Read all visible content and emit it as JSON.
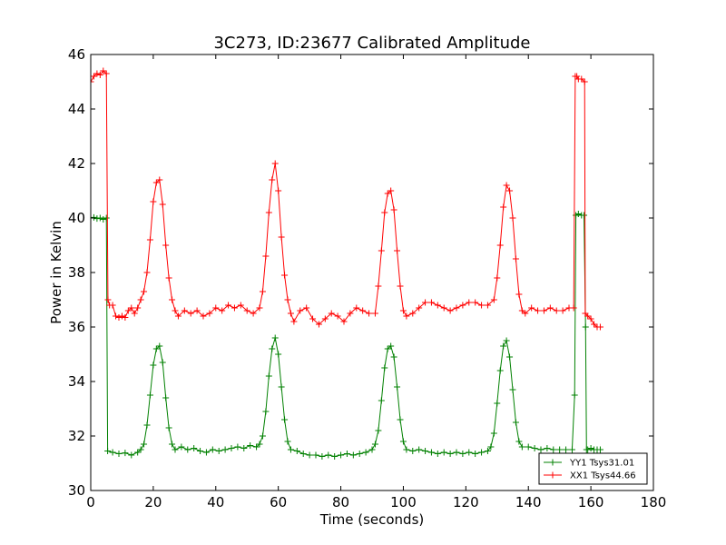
{
  "chart_data": {
    "type": "line",
    "title": "3C273, ID:23677 Calibrated Amplitude",
    "xlabel": "Time (seconds)",
    "ylabel": "Power in Kelvin",
    "xlim": [
      0,
      180
    ],
    "ylim": [
      30,
      46
    ],
    "xticks": [
      "0",
      "20",
      "40",
      "60",
      "80",
      "100",
      "120",
      "140",
      "160",
      "180"
    ],
    "yticks": [
      "30",
      "32",
      "34",
      "36",
      "38",
      "40",
      "42",
      "44",
      "46"
    ],
    "grid": false,
    "legend_position": "bottom-right",
    "marker": "plus",
    "series": [
      {
        "name": "YY1 Tsys31.01",
        "color": "#008000",
        "points": [
          [
            0,
            40.0
          ],
          [
            1,
            40.02
          ],
          [
            2,
            39.98
          ],
          [
            3,
            40.0
          ],
          [
            4,
            39.95
          ],
          [
            5,
            40.0
          ],
          [
            5.4,
            31.45
          ],
          [
            7,
            31.4
          ],
          [
            9,
            31.35
          ],
          [
            11,
            31.38
          ],
          [
            13,
            31.3
          ],
          [
            15,
            31.4
          ],
          [
            16,
            31.5
          ],
          [
            17,
            31.7
          ],
          [
            18,
            32.4
          ],
          [
            19,
            33.5
          ],
          [
            20,
            34.6
          ],
          [
            21,
            35.2
          ],
          [
            22,
            35.3
          ],
          [
            23,
            34.7
          ],
          [
            24,
            33.4
          ],
          [
            25,
            32.3
          ],
          [
            26,
            31.7
          ],
          [
            27,
            31.5
          ],
          [
            29,
            31.6
          ],
          [
            31,
            31.5
          ],
          [
            33,
            31.55
          ],
          [
            35,
            31.45
          ],
          [
            37,
            31.4
          ],
          [
            39,
            31.5
          ],
          [
            41,
            31.45
          ],
          [
            43,
            31.5
          ],
          [
            45,
            31.55
          ],
          [
            47,
            31.6
          ],
          [
            49,
            31.55
          ],
          [
            51,
            31.65
          ],
          [
            53,
            31.6
          ],
          [
            54,
            31.7
          ],
          [
            55,
            32.0
          ],
          [
            56,
            32.9
          ],
          [
            57,
            34.2
          ],
          [
            58,
            35.2
          ],
          [
            59,
            35.6
          ],
          [
            60,
            35.0
          ],
          [
            61,
            33.8
          ],
          [
            62,
            32.6
          ],
          [
            63,
            31.8
          ],
          [
            64,
            31.5
          ],
          [
            66,
            31.45
          ],
          [
            68,
            31.35
          ],
          [
            70,
            31.3
          ],
          [
            72,
            31.3
          ],
          [
            74,
            31.25
          ],
          [
            76,
            31.3
          ],
          [
            78,
            31.25
          ],
          [
            80,
            31.3
          ],
          [
            82,
            31.35
          ],
          [
            84,
            31.3
          ],
          [
            86,
            31.35
          ],
          [
            88,
            31.4
          ],
          [
            90,
            31.5
          ],
          [
            91,
            31.7
          ],
          [
            92,
            32.2
          ],
          [
            93,
            33.3
          ],
          [
            94,
            34.5
          ],
          [
            95,
            35.2
          ],
          [
            96,
            35.3
          ],
          [
            97,
            34.9
          ],
          [
            98,
            33.8
          ],
          [
            99,
            32.6
          ],
          [
            100,
            31.8
          ],
          [
            101,
            31.5
          ],
          [
            103,
            31.45
          ],
          [
            105,
            31.5
          ],
          [
            107,
            31.45
          ],
          [
            109,
            31.4
          ],
          [
            111,
            31.35
          ],
          [
            113,
            31.4
          ],
          [
            115,
            31.35
          ],
          [
            117,
            31.4
          ],
          [
            119,
            31.35
          ],
          [
            121,
            31.4
          ],
          [
            123,
            31.35
          ],
          [
            125,
            31.4
          ],
          [
            127,
            31.45
          ],
          [
            128,
            31.6
          ],
          [
            129,
            32.1
          ],
          [
            130,
            33.2
          ],
          [
            131,
            34.4
          ],
          [
            132,
            35.3
          ],
          [
            133,
            35.5
          ],
          [
            134,
            34.9
          ],
          [
            135,
            33.7
          ],
          [
            136,
            32.5
          ],
          [
            137,
            31.8
          ],
          [
            138,
            31.6
          ],
          [
            140,
            31.6
          ],
          [
            142,
            31.55
          ],
          [
            144,
            31.5
          ],
          [
            146,
            31.55
          ],
          [
            148,
            31.5
          ],
          [
            150,
            31.5
          ],
          [
            152,
            31.5
          ],
          [
            154,
            31.5
          ],
          [
            154.8,
            33.5
          ],
          [
            155.2,
            40.1
          ],
          [
            156,
            40.15
          ],
          [
            157,
            40.1
          ],
          [
            157.8,
            40.1
          ],
          [
            158.3,
            36.0
          ],
          [
            158.6,
            31.5
          ],
          [
            159,
            31.5
          ],
          [
            160,
            31.55
          ],
          [
            161,
            31.5
          ],
          [
            162,
            31.5
          ],
          [
            163,
            31.5
          ]
        ]
      },
      {
        "name": "XX1 Tsys44.66",
        "color": "#ff0000",
        "points": [
          [
            0,
            45.0
          ],
          [
            1,
            45.2
          ],
          [
            2,
            45.3
          ],
          [
            3,
            45.25
          ],
          [
            4,
            45.4
          ],
          [
            5,
            45.3
          ],
          [
            5.5,
            37.0
          ],
          [
            6,
            36.8
          ],
          [
            7,
            36.8
          ],
          [
            8,
            36.4
          ],
          [
            9,
            36.35
          ],
          [
            10,
            36.4
          ],
          [
            11,
            36.35
          ],
          [
            12,
            36.6
          ],
          [
            13,
            36.7
          ],
          [
            14,
            36.5
          ],
          [
            15,
            36.7
          ],
          [
            16,
            37.0
          ],
          [
            17,
            37.3
          ],
          [
            18,
            38.0
          ],
          [
            19,
            39.2
          ],
          [
            20,
            40.6
          ],
          [
            21,
            41.3
          ],
          [
            22,
            41.4
          ],
          [
            23,
            40.5
          ],
          [
            24,
            39.0
          ],
          [
            25,
            37.8
          ],
          [
            26,
            37.0
          ],
          [
            27,
            36.6
          ],
          [
            28,
            36.4
          ],
          [
            30,
            36.6
          ],
          [
            32,
            36.5
          ],
          [
            34,
            36.6
          ],
          [
            36,
            36.4
          ],
          [
            38,
            36.5
          ],
          [
            40,
            36.7
          ],
          [
            42,
            36.6
          ],
          [
            44,
            36.8
          ],
          [
            46,
            36.7
          ],
          [
            48,
            36.8
          ],
          [
            50,
            36.6
          ],
          [
            52,
            36.5
          ],
          [
            54,
            36.7
          ],
          [
            55,
            37.3
          ],
          [
            56,
            38.6
          ],
          [
            57,
            40.2
          ],
          [
            58,
            41.4
          ],
          [
            59,
            42.0
          ],
          [
            60,
            41.0
          ],
          [
            61,
            39.3
          ],
          [
            62,
            37.9
          ],
          [
            63,
            37.0
          ],
          [
            64,
            36.5
          ],
          [
            65,
            36.2
          ],
          [
            67,
            36.6
          ],
          [
            69,
            36.7
          ],
          [
            71,
            36.3
          ],
          [
            73,
            36.1
          ],
          [
            75,
            36.3
          ],
          [
            77,
            36.5
          ],
          [
            79,
            36.4
          ],
          [
            81,
            36.2
          ],
          [
            83,
            36.5
          ],
          [
            85,
            36.7
          ],
          [
            87,
            36.6
          ],
          [
            89,
            36.5
          ],
          [
            91,
            36.5
          ],
          [
            92,
            37.5
          ],
          [
            93,
            38.8
          ],
          [
            94,
            40.2
          ],
          [
            95,
            40.9
          ],
          [
            96,
            41.0
          ],
          [
            97,
            40.3
          ],
          [
            98,
            38.8
          ],
          [
            99,
            37.5
          ],
          [
            100,
            36.6
          ],
          [
            101,
            36.4
          ],
          [
            103,
            36.5
          ],
          [
            105,
            36.7
          ],
          [
            107,
            36.9
          ],
          [
            109,
            36.9
          ],
          [
            111,
            36.8
          ],
          [
            113,
            36.7
          ],
          [
            115,
            36.6
          ],
          [
            117,
            36.7
          ],
          [
            119,
            36.8
          ],
          [
            121,
            36.9
          ],
          [
            123,
            36.9
          ],
          [
            125,
            36.8
          ],
          [
            127,
            36.8
          ],
          [
            129,
            37.0
          ],
          [
            130,
            37.8
          ],
          [
            131,
            39.0
          ],
          [
            132,
            40.4
          ],
          [
            133,
            41.2
          ],
          [
            134,
            41.0
          ],
          [
            135,
            40.0
          ],
          [
            136,
            38.5
          ],
          [
            137,
            37.2
          ],
          [
            138,
            36.6
          ],
          [
            139,
            36.5
          ],
          [
            141,
            36.7
          ],
          [
            143,
            36.6
          ],
          [
            145,
            36.6
          ],
          [
            147,
            36.7
          ],
          [
            149,
            36.6
          ],
          [
            151,
            36.6
          ],
          [
            153,
            36.7
          ],
          [
            154.5,
            36.7
          ],
          [
            155,
            45.2
          ],
          [
            155.5,
            45.2
          ],
          [
            156,
            45.1
          ],
          [
            157,
            45.1
          ],
          [
            158,
            45.0
          ],
          [
            158.2,
            36.5
          ],
          [
            159,
            36.4
          ],
          [
            160,
            36.3
          ],
          [
            161,
            36.1
          ],
          [
            162,
            36.0
          ],
          [
            163,
            36.0
          ]
        ]
      }
    ]
  }
}
